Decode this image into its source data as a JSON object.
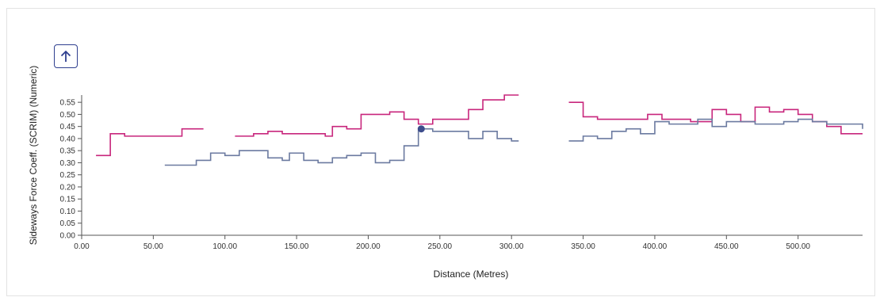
{
  "toolbar": {
    "scroll_top_icon": "arrow-up-icon"
  },
  "chart_data": {
    "type": "line",
    "step": true,
    "xlabel": "Distance (Metres)",
    "ylabel": "Sideways Force Coeff. (SCRIM) (Numeric)",
    "xlim": [
      0,
      545
    ],
    "ylim": [
      0,
      0.58
    ],
    "x_ticks": [
      "0.00",
      "50.00",
      "100.00",
      "150.00",
      "200.00",
      "250.00",
      "300.00",
      "350.00",
      "400.00",
      "450.00",
      "500.00"
    ],
    "y_ticks": [
      "0.00",
      "0.05",
      "0.10",
      "0.15",
      "0.20",
      "0.25",
      "0.30",
      "0.35",
      "0.40",
      "0.45",
      "0.50",
      "0.55"
    ],
    "grid": false,
    "colors": {
      "pink": "#c8267c",
      "blue": "#6b7aa0",
      "marker": "#3d4d8c"
    },
    "series": [
      {
        "color": "#c8267c",
        "segments": [
          [
            [
              10,
              0.33
            ],
            [
              20,
              0.42
            ],
            [
              30,
              0.41
            ],
            [
              60,
              0.41
            ],
            [
              70,
              0.44
            ],
            [
              85,
              0.44
            ]
          ],
          [
            [
              107,
              0.41
            ],
            [
              120,
              0.42
            ],
            [
              130,
              0.43
            ],
            [
              140,
              0.42
            ],
            [
              160,
              0.42
            ],
            [
              170,
              0.41
            ],
            [
              175,
              0.45
            ],
            [
              185,
              0.44
            ],
            [
              195,
              0.5
            ],
            [
              215,
              0.51
            ],
            [
              225,
              0.48
            ],
            [
              235,
              0.46
            ],
            [
              245,
              0.48
            ],
            [
              260,
              0.48
            ],
            [
              270,
              0.52
            ],
            [
              280,
              0.56
            ],
            [
              290,
              0.56
            ],
            [
              295,
              0.58
            ],
            [
              305,
              0.58
            ]
          ],
          [
            [
              340,
              0.55
            ],
            [
              350,
              0.49
            ],
            [
              360,
              0.48
            ],
            [
              375,
              0.48
            ],
            [
              395,
              0.5
            ],
            [
              405,
              0.48
            ],
            [
              425,
              0.47
            ],
            [
              440,
              0.52
            ],
            [
              450,
              0.5
            ],
            [
              460,
              0.47
            ],
            [
              470,
              0.53
            ],
            [
              480,
              0.51
            ],
            [
              490,
              0.52
            ],
            [
              500,
              0.5
            ],
            [
              510,
              0.47
            ],
            [
              520,
              0.45
            ],
            [
              530,
              0.42
            ],
            [
              545,
              0.42
            ]
          ]
        ]
      },
      {
        "color": "#6b7aa0",
        "segments": [
          [
            [
              58,
              0.29
            ],
            [
              70,
              0.29
            ],
            [
              80,
              0.31
            ],
            [
              90,
              0.34
            ],
            [
              100,
              0.33
            ],
            [
              110,
              0.35
            ],
            [
              120,
              0.35
            ],
            [
              130,
              0.32
            ],
            [
              140,
              0.31
            ],
            [
              145,
              0.34
            ],
            [
              155,
              0.31
            ],
            [
              165,
              0.3
            ],
            [
              175,
              0.32
            ],
            [
              185,
              0.33
            ],
            [
              195,
              0.34
            ],
            [
              205,
              0.3
            ],
            [
              215,
              0.31
            ],
            [
              225,
              0.37
            ],
            [
              235,
              0.44
            ],
            [
              245,
              0.43
            ],
            [
              260,
              0.43
            ],
            [
              270,
              0.4
            ],
            [
              280,
              0.43
            ],
            [
              290,
              0.4
            ],
            [
              300,
              0.39
            ],
            [
              305,
              0.39
            ]
          ],
          [
            [
              340,
              0.39
            ],
            [
              350,
              0.41
            ],
            [
              360,
              0.4
            ],
            [
              370,
              0.43
            ],
            [
              380,
              0.44
            ],
            [
              390,
              0.42
            ],
            [
              400,
              0.47
            ],
            [
              410,
              0.46
            ],
            [
              420,
              0.46
            ],
            [
              430,
              0.48
            ],
            [
              440,
              0.45
            ],
            [
              450,
              0.47
            ],
            [
              460,
              0.47
            ],
            [
              470,
              0.46
            ],
            [
              480,
              0.46
            ],
            [
              490,
              0.47
            ],
            [
              500,
              0.48
            ],
            [
              510,
              0.47
            ],
            [
              520,
              0.46
            ],
            [
              530,
              0.46
            ],
            [
              545,
              0.44
            ]
          ]
        ]
      }
    ],
    "highlight_point": {
      "x": 237,
      "y": 0.44
    }
  }
}
